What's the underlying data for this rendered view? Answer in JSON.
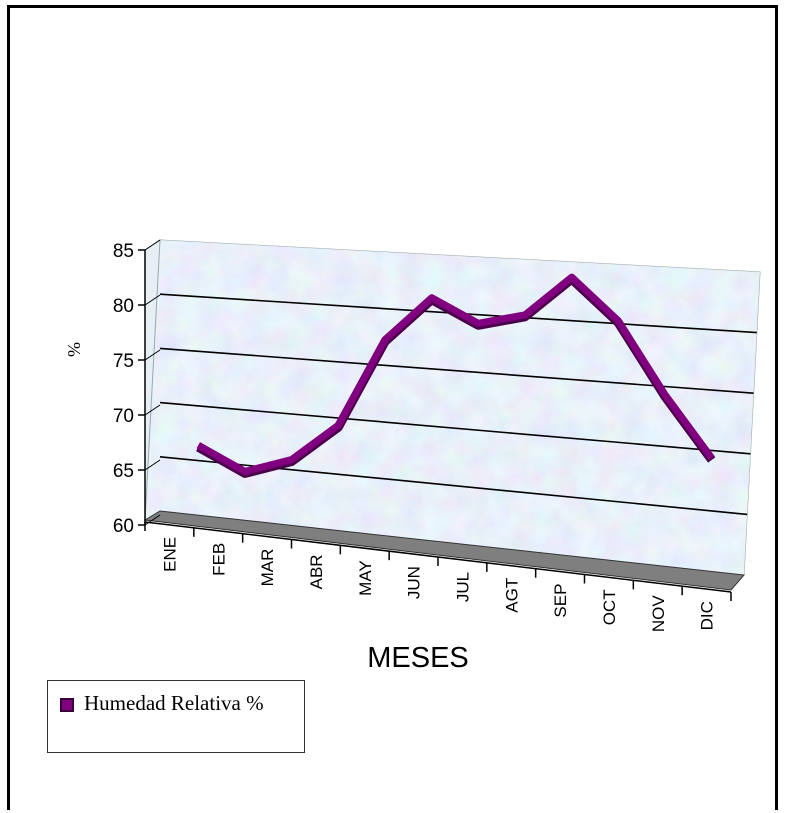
{
  "chart_data": {
    "type": "line",
    "style": "3d",
    "xlabel": "MESES",
    "ylabel": "%",
    "ylim": [
      60,
      85
    ],
    "yticks": [
      "60",
      "65",
      "70",
      "75",
      "80",
      "85"
    ],
    "grid": true,
    "legend": "bottom-left",
    "categories": [
      "ENE",
      "FEB",
      "MAR",
      "ABR",
      "MAY",
      "JUN",
      "JUL",
      "AGT",
      "SEP",
      "OCT",
      "NOV",
      "DIC"
    ],
    "series": [
      {
        "name": "Humedad Relativa %",
        "color": "#800080",
        "values": [
          67,
          65,
          66.5,
          70,
          78,
          82,
          80,
          81,
          84.5,
          81,
          75,
          70
        ]
      }
    ]
  },
  "colors": {
    "series": "#800080",
    "floor": "#7f7f7f",
    "wall": "#d6e8f4"
  }
}
